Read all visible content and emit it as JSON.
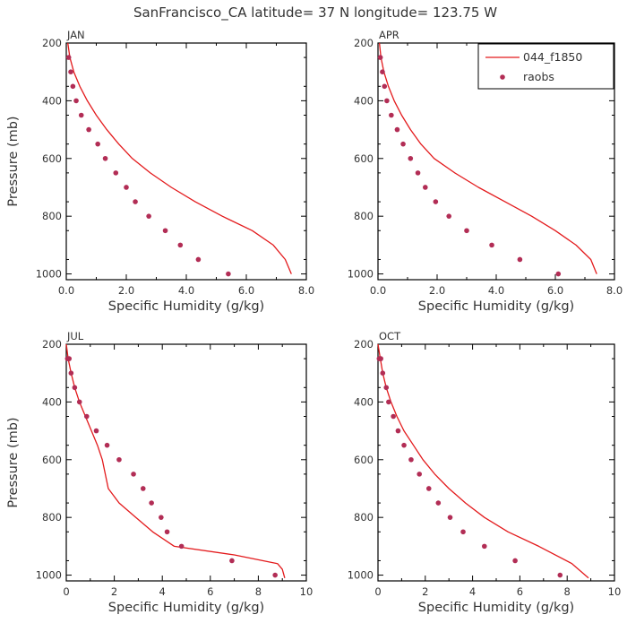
{
  "title": "SanFrancisco_CA  latitude= 37 N longitude= 123.75 W",
  "colors": {
    "model_line": "#e31a1c",
    "raobs_marker": "#b22d55"
  },
  "legend": {
    "placement": "top-right of APR panel",
    "model_label": "044_f1850",
    "obs_label": "raobs"
  },
  "chart_data": [
    {
      "type": "line",
      "panel_label": "JAN",
      "xlabel": "Specific Humidity (g/kg)",
      "ylabel": "Pressure (mb)",
      "xlim": [
        0,
        8
      ],
      "ylim": [
        1020,
        200
      ],
      "y_inverted": true,
      "x_ticks": [
        0,
        2,
        4,
        6,
        8
      ],
      "x_tick_labels": [
        "0.0",
        "2.0",
        "4.0",
        "6.0",
        "8.0"
      ],
      "y_ticks": [
        200,
        400,
        600,
        800,
        1000
      ],
      "y_tick_labels": [
        "200",
        "400",
        "600",
        "800",
        "1000"
      ],
      "series": [
        {
          "name": "044_f1850",
          "kind": "line",
          "x": [
            0.05,
            0.12,
            0.25,
            0.45,
            0.7,
            1.0,
            1.35,
            1.75,
            2.2,
            2.8,
            3.5,
            4.3,
            5.2,
            6.2,
            6.9,
            7.3,
            7.5
          ],
          "y": [
            200,
            250,
            300,
            350,
            400,
            450,
            500,
            550,
            600,
            650,
            700,
            750,
            800,
            850,
            900,
            950,
            1000
          ]
        },
        {
          "name": "raobs",
          "kind": "scatter",
          "x": [
            0.08,
            0.15,
            0.22,
            0.33,
            0.5,
            0.75,
            1.05,
            1.3,
            1.65,
            2.0,
            2.3,
            2.75,
            3.3,
            3.8,
            4.4,
            5.4
          ],
          "y": [
            250,
            300,
            350,
            400,
            450,
            500,
            550,
            600,
            650,
            700,
            750,
            800,
            850,
            900,
            950,
            1000
          ]
        }
      ]
    },
    {
      "type": "line",
      "panel_label": "APR",
      "xlabel": "Specific Humidity (g/kg)",
      "ylabel": "",
      "xlim": [
        0,
        8
      ],
      "ylim": [
        1020,
        200
      ],
      "y_inverted": true,
      "x_ticks": [
        0,
        2,
        4,
        6,
        8
      ],
      "x_tick_labels": [
        "0.0",
        "2.0",
        "4.0",
        "6.0",
        "8.0"
      ],
      "y_ticks": [
        200,
        400,
        600,
        800,
        1000
      ],
      "y_tick_labels": [
        "200",
        "400",
        "600",
        "800",
        "1000"
      ],
      "series": [
        {
          "name": "044_f1850",
          "kind": "line",
          "x": [
            0.05,
            0.1,
            0.2,
            0.35,
            0.55,
            0.8,
            1.1,
            1.45,
            1.9,
            2.6,
            3.4,
            4.3,
            5.2,
            6.0,
            6.7,
            7.2,
            7.4
          ],
          "y": [
            200,
            250,
            300,
            350,
            400,
            450,
            500,
            550,
            600,
            650,
            700,
            750,
            800,
            850,
            900,
            950,
            1000
          ]
        },
        {
          "name": "raobs",
          "kind": "scatter",
          "x": [
            0.08,
            0.15,
            0.22,
            0.3,
            0.45,
            0.65,
            0.85,
            1.1,
            1.35,
            1.6,
            1.95,
            2.4,
            3.0,
            3.85,
            4.8,
            6.1
          ],
          "y": [
            250,
            300,
            350,
            400,
            450,
            500,
            550,
            600,
            650,
            700,
            750,
            800,
            850,
            900,
            950,
            1000
          ]
        }
      ]
    },
    {
      "type": "line",
      "panel_label": "JUL",
      "xlabel": "Specific Humidity (g/kg)",
      "ylabel": "Pressure (mb)",
      "xlim": [
        0,
        10
      ],
      "ylim": [
        1020,
        200
      ],
      "y_inverted": true,
      "x_ticks": [
        0,
        2,
        4,
        6,
        8,
        10
      ],
      "x_tick_labels": [
        "0",
        "2",
        "4",
        "6",
        "8",
        "10"
      ],
      "y_ticks": [
        200,
        400,
        600,
        800,
        1000
      ],
      "y_tick_labels": [
        "200",
        "400",
        "600",
        "800",
        "1000"
      ],
      "series": [
        {
          "name": "044_f1850",
          "kind": "line",
          "x": [
            0.0,
            0.08,
            0.2,
            0.35,
            0.55,
            0.8,
            1.05,
            1.3,
            1.5,
            1.75,
            2.2,
            2.9,
            3.6,
            4.5,
            7.0,
            8.8,
            9.0,
            9.1
          ],
          "y": [
            200,
            250,
            300,
            350,
            400,
            450,
            500,
            550,
            600,
            700,
            750,
            800,
            850,
            900,
            930,
            960,
            980,
            1010
          ]
        },
        {
          "name": "raobs",
          "kind": "scatter",
          "x": [
            0.05,
            0.12,
            0.2,
            0.35,
            0.55,
            0.85,
            1.25,
            1.7,
            2.2,
            2.8,
            3.2,
            3.55,
            3.95,
            4.2,
            4.8,
            6.9,
            8.7
          ],
          "y": [
            250,
            250,
            300,
            350,
            400,
            450,
            500,
            550,
            600,
            650,
            700,
            750,
            800,
            850,
            900,
            950,
            1000
          ]
        }
      ]
    },
    {
      "type": "line",
      "panel_label": "OCT",
      "xlabel": "Specific Humidity (g/kg)",
      "ylabel": "",
      "xlim": [
        0,
        10
      ],
      "ylim": [
        1020,
        200
      ],
      "y_inverted": true,
      "x_ticks": [
        0,
        2,
        4,
        6,
        8,
        10
      ],
      "x_tick_labels": [
        "0",
        "2",
        "4",
        "6",
        "8",
        "10"
      ],
      "y_ticks": [
        200,
        400,
        600,
        800,
        1000
      ],
      "y_tick_labels": [
        "200",
        "400",
        "600",
        "800",
        "1000"
      ],
      "series": [
        {
          "name": "044_f1850",
          "kind": "line",
          "x": [
            0.0,
            0.1,
            0.2,
            0.35,
            0.55,
            0.8,
            1.1,
            1.5,
            1.9,
            2.4,
            3.0,
            3.7,
            4.5,
            5.5,
            6.8,
            8.2,
            8.9
          ],
          "y": [
            200,
            250,
            300,
            350,
            400,
            450,
            500,
            550,
            600,
            650,
            700,
            750,
            800,
            850,
            900,
            960,
            1010
          ]
        },
        {
          "name": "raobs",
          "kind": "scatter",
          "x": [
            0.05,
            0.12,
            0.2,
            0.35,
            0.45,
            0.65,
            0.85,
            1.1,
            1.4,
            1.75,
            2.15,
            2.55,
            3.05,
            3.6,
            4.5,
            5.8,
            7.7
          ],
          "y": [
            250,
            250,
            300,
            350,
            400,
            450,
            500,
            550,
            600,
            650,
            700,
            750,
            800,
            850,
            900,
            950,
            1000
          ]
        }
      ]
    }
  ]
}
